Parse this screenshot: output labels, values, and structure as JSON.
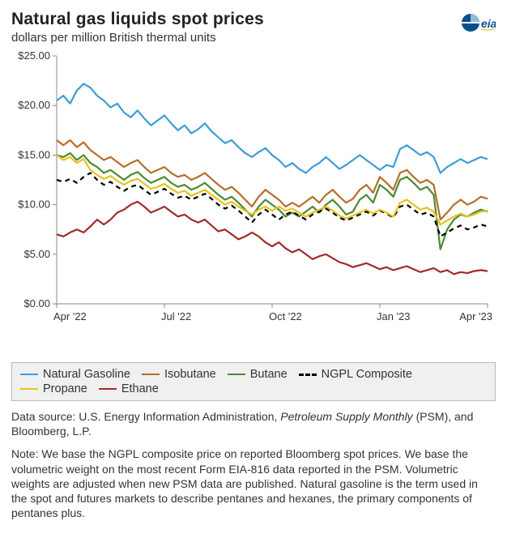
{
  "header": {
    "title": "Natural gas liquids spot prices",
    "subtitle": "dollars per million British thermal units",
    "logo_label": "eia"
  },
  "chart": {
    "type": "line",
    "background_color": "#ffffff",
    "axis_color": "#888888",
    "label_fontsize": 13,
    "ylim": [
      0,
      25
    ],
    "ytick_step": 5,
    "ytick_labels": [
      "$0.00",
      "$5.00",
      "$10.00",
      "$15.00",
      "$20.00",
      "$25.00"
    ],
    "xtick_positions": [
      0,
      0.25,
      0.5,
      0.75,
      1.0
    ],
    "xtick_labels": [
      "Apr '22",
      "Jul '22",
      "Oct '22",
      "Jan '23",
      "Apr '23"
    ],
    "series": [
      {
        "name": "Natural Gasoline",
        "color": "#3d9dd6",
        "dash": "solid",
        "values": [
          20.5,
          21.0,
          20.2,
          21.5,
          22.2,
          21.8,
          21.0,
          20.5,
          19.8,
          20.2,
          19.3,
          18.8,
          19.5,
          18.7,
          18.0,
          18.5,
          19.0,
          18.2,
          17.5,
          18.0,
          17.2,
          17.6,
          18.2,
          17.4,
          16.8,
          16.2,
          16.5,
          15.8,
          15.2,
          14.8,
          15.3,
          15.7,
          15.0,
          14.5,
          13.8,
          14.2,
          13.6,
          13.2,
          13.8,
          14.2,
          14.8,
          14.2,
          13.6,
          14.0,
          14.5,
          15.0,
          14.5,
          14.0,
          13.5,
          14.0,
          13.8,
          15.6,
          16.0,
          15.5,
          15.0,
          15.3,
          14.8,
          13.2,
          13.8,
          14.2,
          14.6,
          14.2,
          14.5,
          14.8,
          14.6
        ]
      },
      {
        "name": "Isobutane",
        "color": "#b86d29",
        "dash": "solid",
        "values": [
          16.5,
          16.0,
          16.5,
          15.8,
          16.3,
          15.5,
          15.0,
          14.5,
          14.8,
          14.3,
          13.8,
          14.2,
          14.5,
          13.8,
          13.2,
          13.5,
          13.8,
          13.2,
          12.8,
          13.0,
          12.5,
          12.8,
          13.2,
          12.6,
          12.0,
          11.5,
          11.8,
          11.2,
          10.5,
          9.8,
          10.8,
          11.5,
          11.0,
          10.5,
          9.8,
          10.2,
          9.8,
          10.3,
          10.8,
          10.2,
          11.0,
          11.5,
          10.8,
          10.2,
          10.6,
          11.5,
          12.0,
          11.2,
          12.8,
          12.2,
          11.5,
          13.2,
          13.5,
          12.8,
          12.2,
          12.5,
          12.0,
          8.5,
          9.2,
          10.0,
          10.5,
          10.0,
          10.3,
          10.8,
          10.6
        ]
      },
      {
        "name": "Butane",
        "color": "#4a8b2f",
        "dash": "solid",
        "values": [
          15.0,
          14.8,
          15.2,
          14.5,
          15.0,
          14.2,
          13.8,
          13.2,
          13.5,
          13.0,
          12.5,
          13.0,
          13.3,
          12.7,
          12.2,
          12.5,
          12.8,
          12.2,
          11.8,
          12.0,
          11.5,
          11.8,
          12.2,
          11.6,
          11.0,
          10.5,
          10.8,
          10.2,
          9.5,
          8.8,
          9.8,
          10.5,
          10.0,
          9.5,
          8.8,
          9.2,
          8.8,
          9.3,
          9.8,
          9.2,
          10.0,
          10.5,
          9.8,
          9.0,
          9.3,
          10.5,
          11.0,
          10.2,
          12.0,
          11.5,
          10.8,
          12.5,
          12.8,
          12.2,
          11.5,
          11.8,
          11.0,
          5.5,
          7.5,
          8.5,
          9.0,
          8.8,
          9.2,
          9.5,
          9.3
        ]
      },
      {
        "name": "NGPL Composite",
        "color": "#000000",
        "dash": "dashed",
        "values": [
          12.5,
          12.3,
          12.6,
          12.2,
          12.8,
          13.2,
          12.5,
          12.0,
          12.3,
          11.8,
          11.4,
          11.8,
          12.0,
          11.5,
          11.0,
          11.3,
          11.6,
          11.1,
          10.7,
          10.9,
          10.5,
          10.8,
          11.1,
          10.6,
          10.0,
          9.6,
          9.9,
          9.4,
          8.8,
          8.2,
          9.0,
          9.5,
          9.0,
          8.5,
          9.0,
          9.3,
          8.9,
          8.5,
          9.0,
          9.3,
          9.6,
          9.2,
          8.7,
          8.4,
          8.7,
          9.0,
          9.3,
          8.9,
          9.4,
          9.1,
          8.7,
          9.8,
          10.0,
          9.5,
          9.0,
          9.2,
          8.8,
          6.8,
          7.2,
          7.6,
          7.9,
          7.5,
          7.7,
          8.0,
          7.8
        ]
      },
      {
        "name": "Propane",
        "color": "#e7c21f",
        "dash": "solid",
        "values": [
          15.0,
          14.5,
          14.8,
          14.2,
          14.6,
          13.5,
          13.0,
          12.6,
          12.9,
          12.4,
          12.0,
          12.4,
          12.6,
          12.1,
          11.6,
          11.8,
          12.1,
          11.6,
          11.2,
          11.4,
          10.9,
          11.2,
          11.5,
          11.0,
          10.5,
          10.0,
          10.3,
          9.8,
          9.4,
          9.0,
          9.5,
          9.8,
          9.4,
          9.8,
          9.4,
          9.6,
          9.2,
          8.8,
          9.2,
          9.5,
          9.8,
          9.4,
          8.9,
          8.6,
          8.9,
          9.2,
          9.5,
          9.1,
          9.5,
          9.2,
          8.8,
          10.2,
          10.5,
          10.0,
          9.5,
          9.7,
          9.3,
          8.0,
          8.4,
          8.8,
          9.1,
          8.8,
          9.0,
          9.3,
          9.4
        ]
      },
      {
        "name": "Ethane",
        "color": "#a32a2a",
        "dash": "solid",
        "values": [
          7.0,
          6.8,
          7.2,
          7.5,
          7.2,
          7.8,
          8.5,
          8.0,
          8.5,
          9.2,
          9.5,
          10.0,
          10.3,
          9.8,
          9.2,
          9.5,
          9.8,
          9.3,
          8.8,
          9.0,
          8.5,
          8.2,
          8.5,
          7.9,
          7.3,
          7.5,
          7.0,
          6.5,
          6.8,
          7.2,
          6.8,
          6.2,
          5.8,
          6.2,
          5.6,
          5.2,
          5.5,
          5.0,
          4.5,
          4.8,
          5.0,
          4.6,
          4.2,
          4.0,
          3.7,
          3.9,
          4.1,
          3.8,
          3.5,
          3.7,
          3.4,
          3.6,
          3.8,
          3.5,
          3.2,
          3.4,
          3.6,
          3.2,
          3.4,
          3.0,
          3.2,
          3.1,
          3.3,
          3.4,
          3.3
        ]
      }
    ]
  },
  "legend": {
    "items": [
      {
        "label": "Natural Gasoline",
        "color": "#3d9dd6",
        "dash": "solid"
      },
      {
        "label": "Isobutane",
        "color": "#b86d29",
        "dash": "solid"
      },
      {
        "label": "Butane",
        "color": "#4a8b2f",
        "dash": "solid"
      },
      {
        "label": "NGPL Composite",
        "color": "#000000",
        "dash": "dashed"
      },
      {
        "label": "Propane",
        "color": "#e7c21f",
        "dash": "solid"
      },
      {
        "label": "Ethane",
        "color": "#a32a2a",
        "dash": "solid"
      }
    ]
  },
  "source": {
    "prefix": "Data source: U.S. Energy Information Administration, ",
    "italic": "Petroleum Supply Monthly",
    "suffix": " (PSM), and Bloomberg, L.P."
  },
  "note": "Note: We base the NGPL composite price on reported Bloomberg spot prices. We base the volumetric weight on the most recent Form EIA-816 data reported in the PSM. Volumetric weights are adjusted when new PSM data are published. Natural gasoline is the term used in the spot and futures markets to describe pentanes and hexanes, the primary components of pentanes plus."
}
